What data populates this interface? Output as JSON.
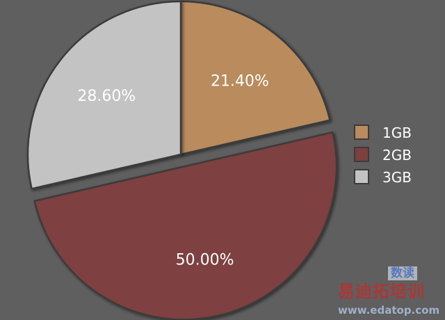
{
  "chart_data": {
    "type": "pie",
    "categories": [
      "1GB",
      "2GB",
      "3GB"
    ],
    "values": [
      21.4,
      50.0,
      28.6
    ],
    "data_labels": [
      "21.40%",
      "50.00%",
      "28.60%"
    ],
    "colors": [
      "#b98b5d",
      "#7e3f3f",
      "#c3c3c3"
    ],
    "exploded": [
      "2GB"
    ],
    "legend_position": "right",
    "title": ""
  },
  "watermark": {
    "line1": "易迪拓培训",
    "line2": "www.edatop.com",
    "badge": "数读"
  }
}
